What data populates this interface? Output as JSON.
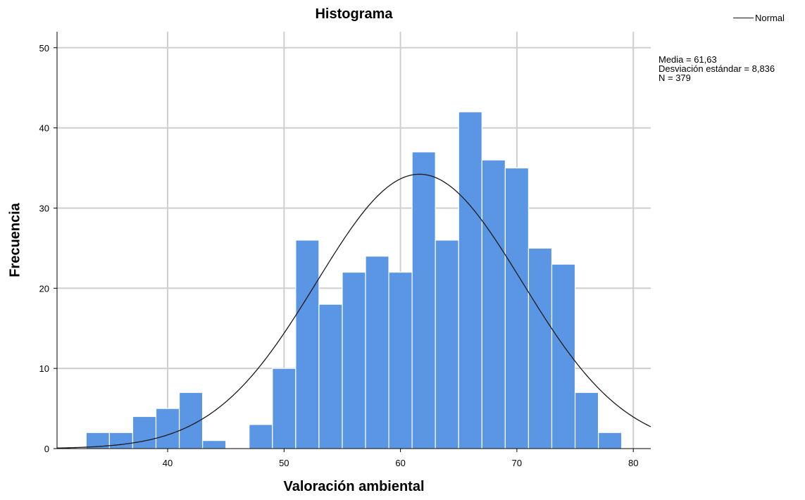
{
  "chart_data": {
    "type": "bar",
    "title": "Histograma",
    "xlabel": "Valoración ambiental",
    "ylabel": "Frecuencia",
    "xlim": [
      30.5,
      81.5
    ],
    "ylim": [
      0,
      52
    ],
    "x_ticks": [
      40,
      50,
      60,
      70,
      80
    ],
    "y_ticks": [
      0,
      10,
      20,
      30,
      40,
      50
    ],
    "grid": true,
    "bin_width": 2,
    "bin_starts": [
      33,
      35,
      37,
      39,
      41,
      43,
      45,
      47,
      49,
      51,
      53,
      55,
      57,
      59,
      61,
      63,
      65,
      67,
      69,
      71,
      73,
      75,
      77
    ],
    "values": [
      2,
      2,
      4,
      5,
      7,
      1,
      0,
      3,
      10,
      26,
      18,
      22,
      24,
      22,
      37,
      26,
      42,
      36,
      35,
      25,
      23,
      7,
      2
    ],
    "bar_color": "#5a96e3",
    "normal_curve": {
      "name": "Normal",
      "mean": 61.63,
      "std": 8.836,
      "n": 379,
      "color": "#1a1a1a"
    },
    "legend": {
      "label": "Normal",
      "position": "top-right"
    },
    "stats": [
      "Media = 61,63",
      "Desviación estándar = 8,836",
      "N = 379"
    ]
  }
}
